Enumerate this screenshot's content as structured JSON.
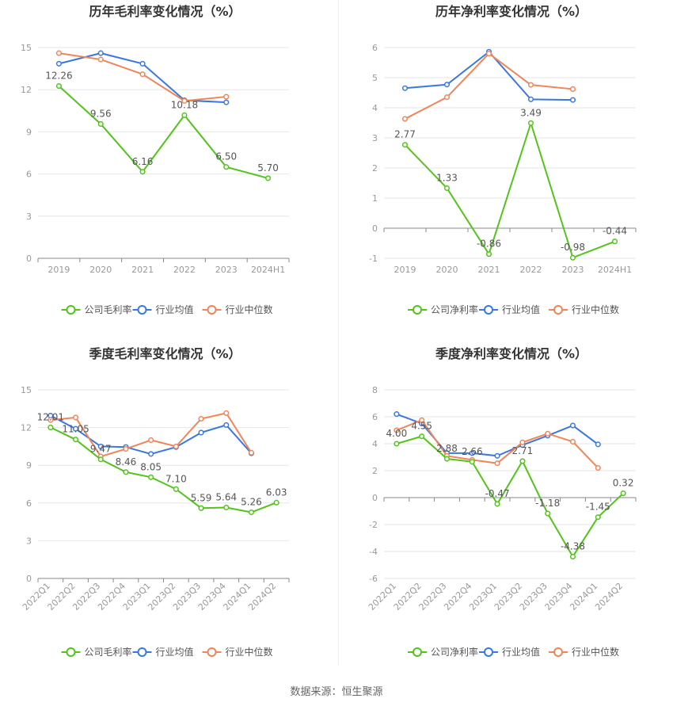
{
  "source_text": "数据来源：恒生聚源",
  "colors": {
    "company": "#52c41a",
    "industry_avg": "#3a78e0",
    "industry_median": "#f0855a",
    "grid": "#e6e6e6",
    "axis": "#999999",
    "label": "#555555"
  },
  "chart_data": [
    {
      "type": "line",
      "title": "历年毛利率变化情况（%）",
      "categories": [
        "2019",
        "2020",
        "2021",
        "2022",
        "2023",
        "2024H1"
      ],
      "ylim": [
        0,
        15
      ],
      "yticks": [
        0,
        3,
        6,
        9,
        12,
        15
      ],
      "series": [
        {
          "name": "公司毛利率",
          "values": [
            12.26,
            9.56,
            6.16,
            10.18,
            6.5,
            5.7
          ],
          "labels": [
            "12.26",
            "9.56",
            "6.16",
            "10.18",
            "6.50",
            "5.70"
          ]
        },
        {
          "name": "行业均值",
          "values": [
            13.85,
            14.6,
            13.85,
            11.25,
            11.1,
            null
          ]
        },
        {
          "name": "行业中位数",
          "values": [
            14.6,
            14.15,
            13.1,
            11.2,
            11.5,
            null
          ]
        }
      ],
      "rotate_x": false,
      "legend": "bottom"
    },
    {
      "type": "line",
      "title": "历年净利率变化情况（%）",
      "categories": [
        "2019",
        "2020",
        "2021",
        "2022",
        "2023",
        "2024H1"
      ],
      "ylim": [
        -1,
        6
      ],
      "yticks": [
        -1,
        0,
        1,
        2,
        3,
        4,
        5,
        6
      ],
      "series": [
        {
          "name": "公司净利率",
          "values": [
            2.77,
            1.33,
            -0.86,
            3.49,
            -0.98,
            -0.44
          ],
          "labels": [
            "2.77",
            "1.33",
            "-0.86",
            "3.49",
            "-0.98",
            "-0.44"
          ]
        },
        {
          "name": "行业均值",
          "values": [
            4.65,
            4.77,
            5.86,
            4.28,
            4.26,
            null
          ]
        },
        {
          "name": "行业中位数",
          "values": [
            3.63,
            4.35,
            5.8,
            4.76,
            4.62,
            null
          ]
        }
      ],
      "rotate_x": false,
      "legend": "bottom"
    },
    {
      "type": "line",
      "title": "季度毛利率变化情况（%）",
      "categories": [
        "2022Q1",
        "2022Q2",
        "2022Q3",
        "2022Q4",
        "2023Q1",
        "2023Q2",
        "2023Q3",
        "2023Q4",
        "2024Q1",
        "2024Q2"
      ],
      "ylim": [
        0,
        15
      ],
      "yticks": [
        0,
        3,
        6,
        9,
        12,
        15
      ],
      "series": [
        {
          "name": "公司毛利率",
          "values": [
            12.01,
            11.05,
            9.47,
            8.46,
            8.05,
            7.1,
            5.59,
            5.64,
            5.26,
            6.03
          ],
          "labels": [
            "12.01",
            "11.05",
            "9.47",
            "8.46",
            "8.05",
            "7.10",
            "5.59",
            "5.64",
            "5.26",
            "6.03"
          ]
        },
        {
          "name": "行业均值",
          "values": [
            12.95,
            11.9,
            10.5,
            10.45,
            9.9,
            10.45,
            11.6,
            12.2,
            9.95,
            null
          ]
        },
        {
          "name": "行业中位数",
          "values": [
            12.6,
            12.8,
            9.7,
            10.3,
            11.0,
            10.5,
            12.7,
            13.15,
            10.0,
            null
          ]
        }
      ],
      "rotate_x": true,
      "legend": "bottom"
    },
    {
      "type": "line",
      "title": "季度净利率变化情况（%）",
      "categories": [
        "2022Q1",
        "2022Q2",
        "2022Q3",
        "2022Q4",
        "2023Q1",
        "2023Q2",
        "2023Q3",
        "2023Q4",
        "2024Q1",
        "2024Q2"
      ],
      "ylim": [
        -6,
        8
      ],
      "yticks": [
        -6,
        -4,
        -2,
        0,
        2,
        4,
        6,
        8
      ],
      "series": [
        {
          "name": "公司净利率",
          "values": [
            4.0,
            4.55,
            2.88,
            2.66,
            -0.47,
            2.71,
            -1.18,
            -4.38,
            -1.45,
            0.32
          ],
          "labels": [
            "4.00",
            "4.55",
            "2.88",
            "2.66",
            "-0.47",
            "2.71",
            "-1.18",
            "-4.38",
            "-1.45",
            "0.32"
          ]
        },
        {
          "name": "行业均值",
          "values": [
            6.2,
            5.5,
            3.3,
            3.3,
            3.1,
            3.9,
            4.6,
            5.35,
            3.95,
            null
          ]
        },
        {
          "name": "行业中位数",
          "values": [
            5.0,
            5.75,
            3.1,
            2.8,
            2.55,
            4.1,
            4.75,
            4.15,
            2.2,
            null
          ]
        }
      ],
      "rotate_x": true,
      "legend": "bottom"
    }
  ]
}
